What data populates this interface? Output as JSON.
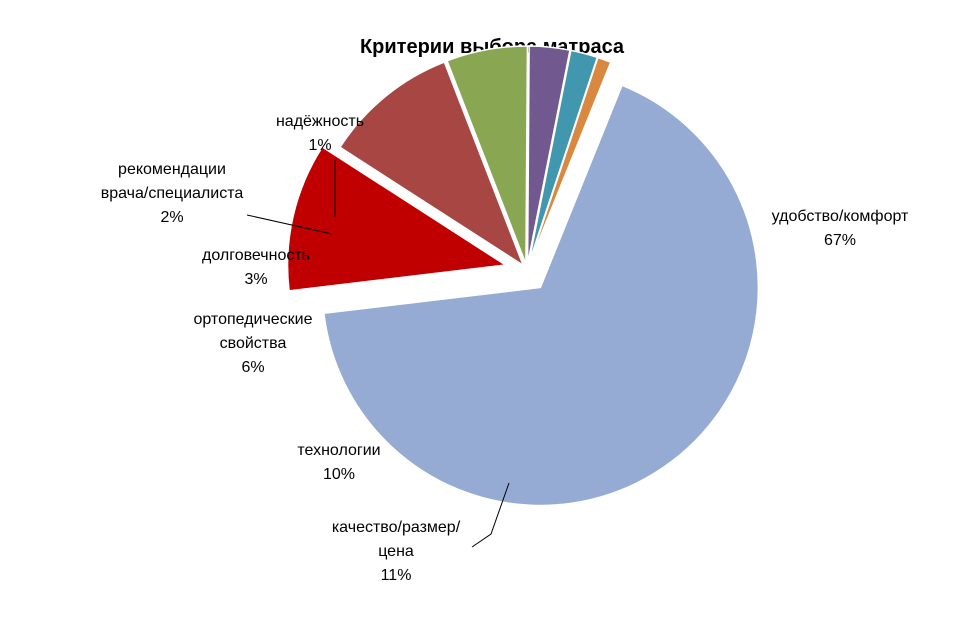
{
  "chart_data": {
    "type": "pie",
    "title": "Критерии выбора матраса",
    "start_angle_deg": 22,
    "direction": "clockwise",
    "exploded": true,
    "slices": [
      {
        "name": "удобство/комфорт",
        "lines": [
          "удобство/комфорт"
        ],
        "value": 67,
        "label": "67%",
        "color": "#95abd3"
      },
      {
        "name": "качество/размер/цена",
        "lines": [
          "качество/размер/",
          "цена"
        ],
        "value": 11,
        "label": "11%",
        "color": "#c00000"
      },
      {
        "name": "технологии",
        "lines": [
          "технологии"
        ],
        "value": 10,
        "label": "10%",
        "color": "#a84644"
      },
      {
        "name": "ортопедические свойства",
        "lines": [
          "ортопедические",
          "свойства"
        ],
        "value": 6,
        "label": "6%",
        "color": "#89a753"
      },
      {
        "name": "долговечность",
        "lines": [
          "долговечность"
        ],
        "value": 3,
        "label": "3%",
        "color": "#71588f"
      },
      {
        "name": "рекомендации врача/специалиста",
        "lines": [
          "рекомендации",
          "врача/специалиста"
        ],
        "value": 2,
        "label": "2%",
        "color": "#4197ad"
      },
      {
        "name": "надёжность",
        "lines": [
          "надёжность"
        ],
        "value": 1,
        "label": "1%",
        "color": "#d9893f"
      }
    ]
  }
}
